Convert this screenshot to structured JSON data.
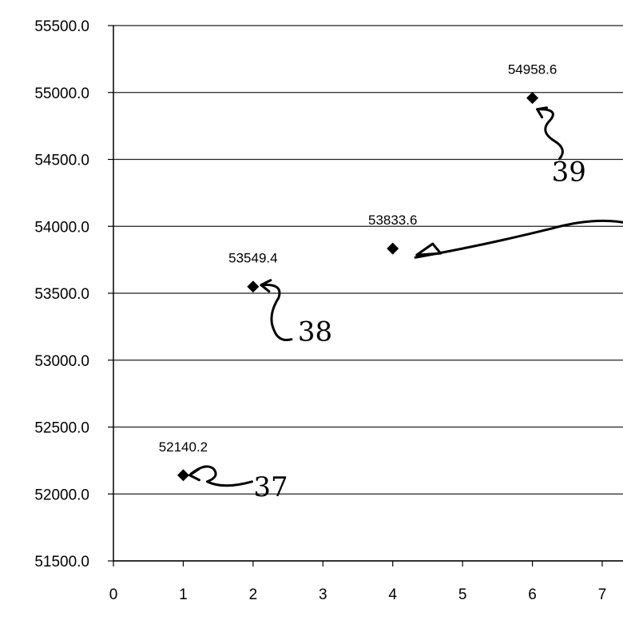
{
  "chart_data": {
    "type": "scatter",
    "title": "",
    "xlabel": "",
    "ylabel": "",
    "xlim": [
      0,
      7
    ],
    "ylim": [
      51500,
      55500
    ],
    "x_ticks": [
      "0",
      "1",
      "2",
      "3",
      "4",
      "5",
      "6",
      "7"
    ],
    "y_ticks": [
      "51500.0",
      "52000.0",
      "52500.0",
      "53000.0",
      "53500.0",
      "54000.0",
      "54500.0",
      "55000.0",
      "55500.0"
    ],
    "grid": true,
    "marker": "diamond",
    "series": [
      {
        "x": [
          1,
          2,
          4,
          6
        ],
        "y": [
          52140.2,
          53549.4,
          53833.6,
          54958.6
        ],
        "labels": [
          "52140.2",
          "53549.4",
          "53833.6",
          "54958.6"
        ]
      }
    ],
    "annotations": [
      {
        "text": "37",
        "points_to_x": 1
      },
      {
        "text": "38",
        "points_to_x": 2
      },
      {
        "text": "39",
        "points_to_x": 6
      }
    ]
  }
}
